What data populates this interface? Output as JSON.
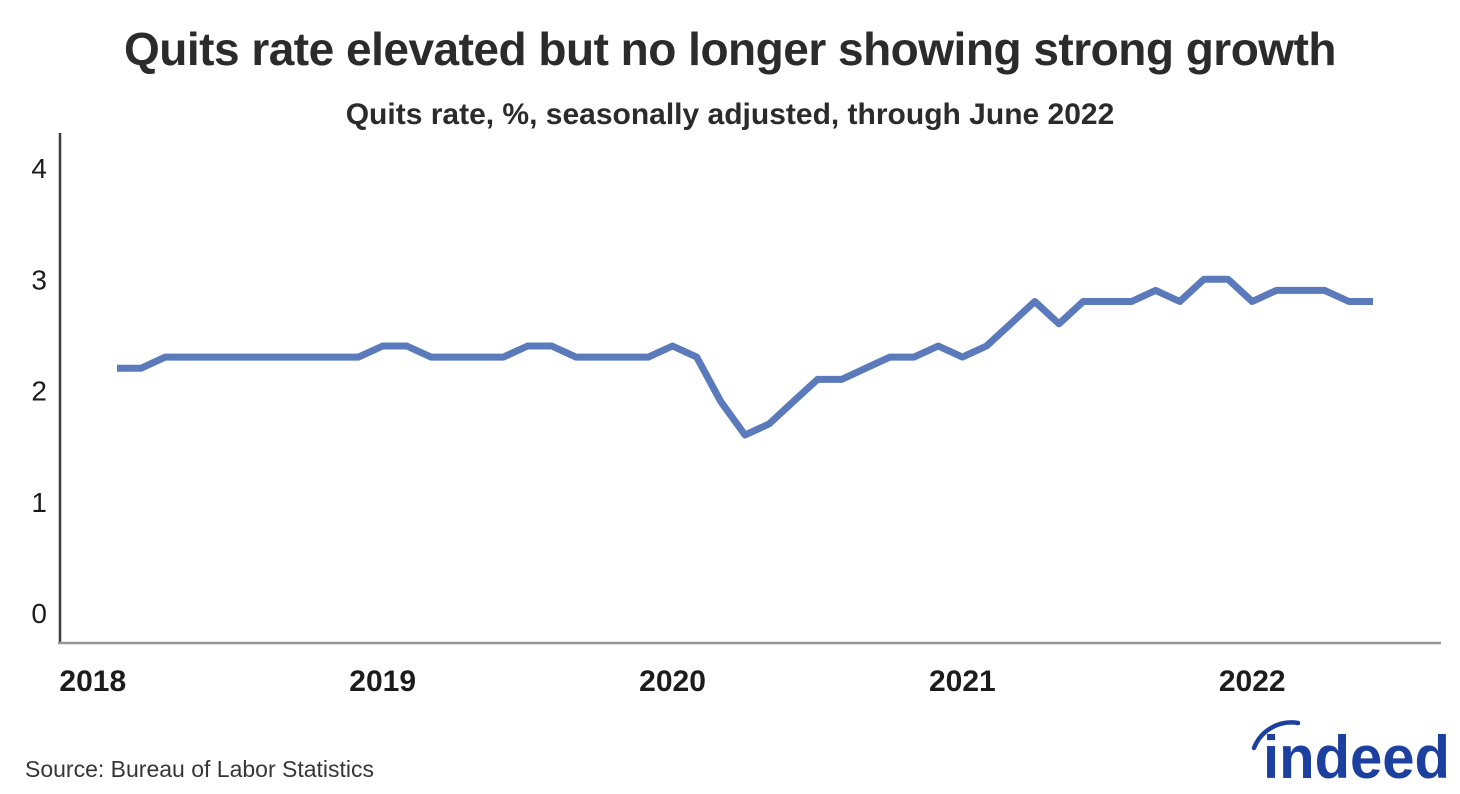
{
  "header": {
    "title": "Quits rate elevated but no longer showing strong growth",
    "subtitle": "Quits rate, %, seasonally adjusted, through June 2022"
  },
  "footer": {
    "source": "Source: Bureau of Labor Statistics",
    "logo_text": "indeed"
  },
  "colors": {
    "line": "#5a7abc",
    "y_axis_line": "#3f3f3f",
    "x_axis_line": "#969696",
    "tick_text": "#1c1c1c",
    "title_text": "#2b2b2b",
    "logo_blue": "#1c409f"
  },
  "chart_data": {
    "type": "line",
    "title": "Quits rate elevated but no longer showing strong growth",
    "subtitle": "Quits rate, %, seasonally adjusted, through June 2022",
    "xlabel": "",
    "ylabel": "",
    "ylim": [
      0,
      4
    ],
    "y_ticks": [
      0,
      1,
      2,
      3,
      4
    ],
    "x_ticks": [
      {
        "label": "2018",
        "month": "2018-01"
      },
      {
        "label": "2019",
        "month": "2019-01"
      },
      {
        "label": "2020",
        "month": "2020-01"
      },
      {
        "label": "2021",
        "month": "2021-01"
      },
      {
        "label": "2022",
        "month": "2022-01"
      }
    ],
    "grid": false,
    "legend": false,
    "series": [
      {
        "name": "Quits rate",
        "color": "#5a7abc",
        "frequency": "monthly",
        "start_month": "2018-02",
        "end_month": "2022-06",
        "monthly_values": [
          2.2,
          2.2,
          2.3,
          2.3,
          2.3,
          2.3,
          2.3,
          2.3,
          2.3,
          2.3,
          2.3,
          2.4,
          2.4,
          2.3,
          2.3,
          2.3,
          2.3,
          2.4,
          2.4,
          2.3,
          2.3,
          2.3,
          2.3,
          2.4,
          2.3,
          1.9,
          1.6,
          1.7,
          1.9,
          2.1,
          2.1,
          2.2,
          2.3,
          2.3,
          2.4,
          2.3,
          2.4,
          2.6,
          2.8,
          2.6,
          2.8,
          2.8,
          2.8,
          2.9,
          2.8,
          3.0,
          3.0,
          2.8,
          2.9,
          2.9,
          2.9,
          2.8,
          2.8
        ]
      }
    ]
  }
}
